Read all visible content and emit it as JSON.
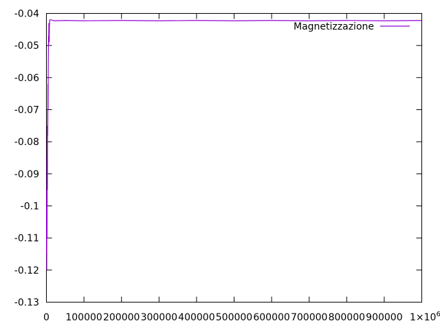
{
  "chart_data": {
    "type": "line",
    "title": "",
    "xlabel": "",
    "ylabel": "",
    "xlim": [
      0,
      1000000
    ],
    "ylim": [
      -0.13,
      -0.04
    ],
    "x_ticks": [
      {
        "value": 0,
        "label": "0"
      },
      {
        "value": 100000,
        "label": "100000"
      },
      {
        "value": 200000,
        "label": "200000"
      },
      {
        "value": 300000,
        "label": "300000"
      },
      {
        "value": 400000,
        "label": "400000"
      },
      {
        "value": 500000,
        "label": "500000"
      },
      {
        "value": 600000,
        "label": "600000"
      },
      {
        "value": 700000,
        "label": "700000"
      },
      {
        "value": 800000,
        "label": "800000"
      },
      {
        "value": 900000,
        "label": "900000"
      }
    ],
    "x_end_label": "1×10",
    "x_end_label_exponent": "6",
    "y_ticks": [
      {
        "value": -0.04,
        "label": "-0.04"
      },
      {
        "value": -0.05,
        "label": "-0.05"
      },
      {
        "value": -0.06,
        "label": "-0.06"
      },
      {
        "value": -0.07,
        "label": "-0.07"
      },
      {
        "value": -0.08,
        "label": "-0.08"
      },
      {
        "value": -0.09,
        "label": "-0.09"
      },
      {
        "value": -0.1,
        "label": "-0.1"
      },
      {
        "value": -0.11,
        "label": "-0.11"
      },
      {
        "value": -0.12,
        "label": "-0.12"
      },
      {
        "value": -0.13,
        "label": "-0.13"
      }
    ],
    "grid": false,
    "legend_position": "top-right",
    "series": [
      {
        "name": "Magnetizzazione",
        "color": "#9400d3",
        "points": [
          [
            0,
            -0.1
          ],
          [
            300,
            -0.115
          ],
          [
            600,
            -0.095
          ],
          [
            900,
            -0.12
          ],
          [
            1200,
            -0.105
          ],
          [
            1500,
            -0.085
          ],
          [
            1800,
            -0.11
          ],
          [
            2100,
            -0.09
          ],
          [
            2400,
            -0.075
          ],
          [
            2700,
            -0.095
          ],
          [
            3000,
            -0.08
          ],
          [
            3300,
            -0.07
          ],
          [
            3600,
            -0.078
          ],
          [
            4000,
            -0.062
          ],
          [
            4400,
            -0.07
          ],
          [
            4800,
            -0.058
          ],
          [
            5200,
            -0.052
          ],
          [
            5600,
            -0.047
          ],
          [
            6000,
            -0.05
          ],
          [
            6500,
            -0.043
          ],
          [
            7000,
            -0.046
          ],
          [
            7500,
            -0.049
          ],
          [
            8000,
            -0.044
          ],
          [
            9000,
            -0.042
          ],
          [
            12000,
            -0.042
          ],
          [
            20000,
            -0.0423
          ],
          [
            50000,
            -0.0422
          ],
          [
            100000,
            -0.0423
          ],
          [
            200000,
            -0.0422
          ],
          [
            300000,
            -0.0423
          ],
          [
            400000,
            -0.0422
          ],
          [
            500000,
            -0.0423
          ],
          [
            600000,
            -0.0422
          ],
          [
            700000,
            -0.0423
          ],
          [
            800000,
            -0.0422
          ],
          [
            900000,
            -0.0423
          ],
          [
            1000000,
            -0.0422
          ]
        ]
      }
    ]
  }
}
